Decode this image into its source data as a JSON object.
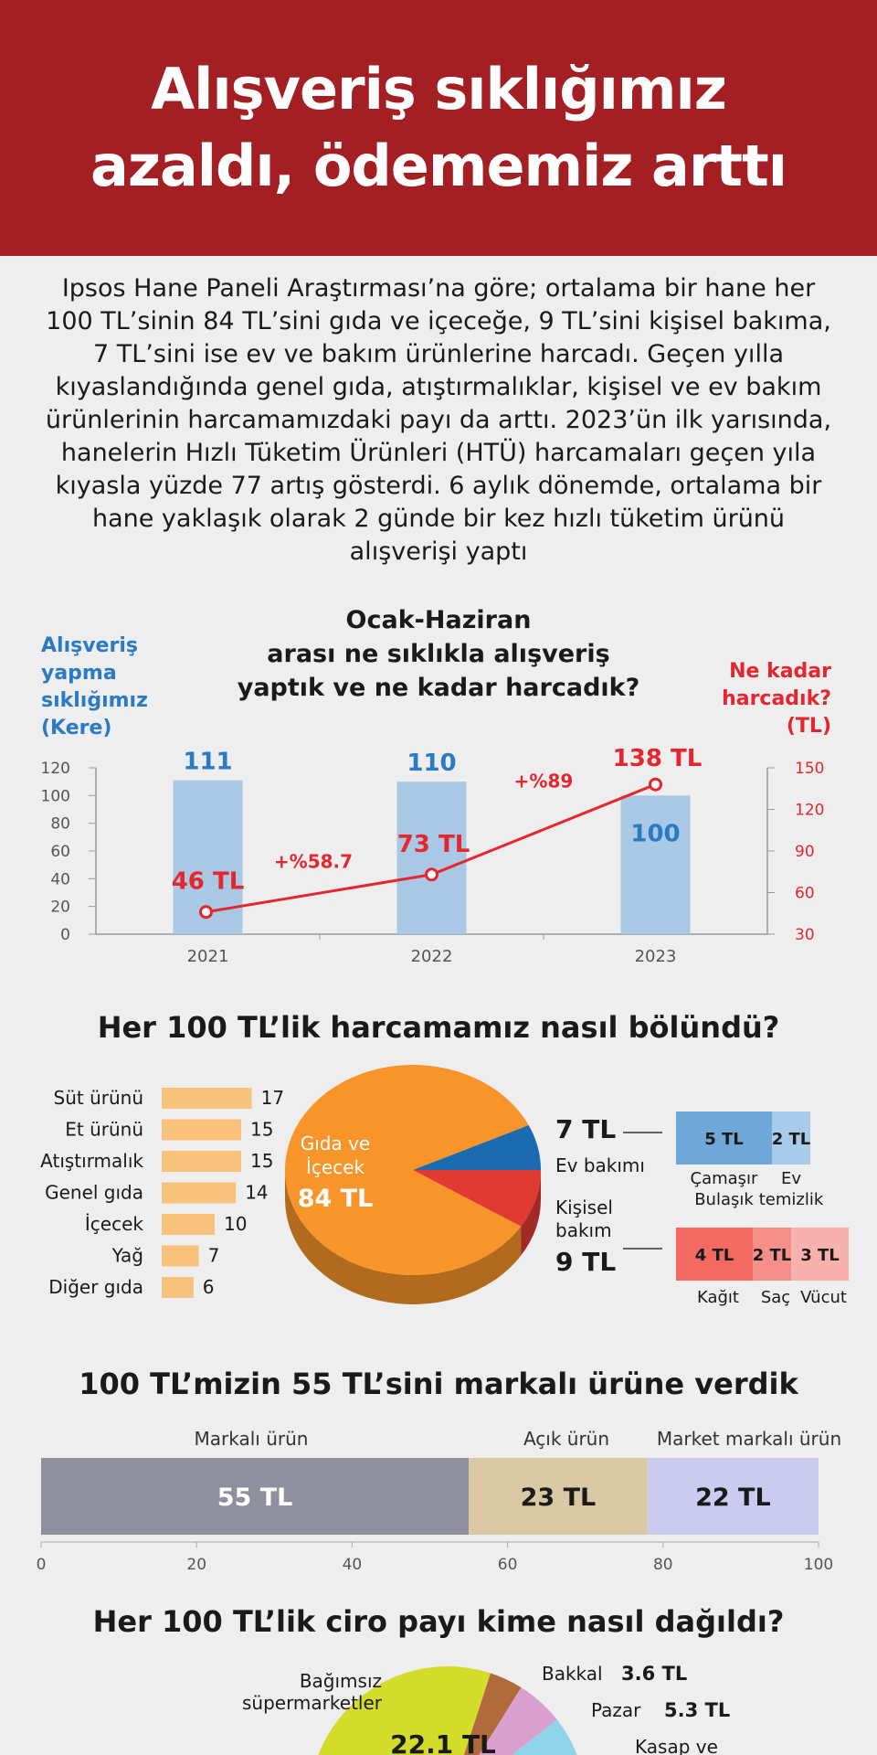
{
  "header": {
    "title_line1": "Alışveriş sıklığımız",
    "title_line2": "azaldı, ödememiz arttı"
  },
  "intro": {
    "text": "Ipsos Hane Paneli Araştırması’na göre; ortalama bir hane her 100 TL’sinin 84 TL’sini gıda ve içeceğe, 9 TL’sini kişisel bakıma, 7 TL’sini ise ev ve bakım ürünlerine harcadı. Geçen yılla kıyaslandığında genel gıda, atıştırmalıklar, kişisel ve ev bakım ürünlerinin harcamamızdaki payı da arttı. 2023’ün ilk yarısında, hanelerin Hızlı Tüketim Ürünleri (HTÜ) harcamaları geçen yıla kıyasla yüzde 77 artış gösterdi. 6 aylık dönemde, ortalama bir hane yaklaşık olarak 2 günde bir kez hızlı tüketim ürünü alışverişi yaptı"
  },
  "chart_data": [
    {
      "type": "bar+line",
      "title": "Ocak-Haziran arası ne sıklıkla alışveriş yaptık ve ne kadar harcadık?",
      "title_lines": [
        "Ocak-Haziran",
        "arası ne sıklıkla alışveriş",
        "yaptık ve ne kadar harcadık?"
      ],
      "left_axis_label_lines": [
        "Alışveriş",
        "yapma",
        "sıklığımız",
        "(Kere)"
      ],
      "right_axis_label_lines": [
        "Ne kadar",
        "harcadık?",
        "(TL)"
      ],
      "categories": [
        "2021",
        "2022",
        "2023"
      ],
      "bars": {
        "name": "Alışveriş yapma sıklığımız (Kere)",
        "values": [
          111,
          110,
          100
        ],
        "color": "#a8c8e6",
        "label_color": "#2a7bc4"
      },
      "line": {
        "name": "Ne kadar harcadık? (TL)",
        "values": [
          46,
          73,
          138
        ],
        "labels": [
          "46 TL",
          "73 TL",
          "138 TL"
        ],
        "color": "#e5262d"
      },
      "changes": [
        "+%58.7",
        "+%89"
      ],
      "ylim_left": [
        0,
        120
      ],
      "yticks_left": [
        "0",
        "20",
        "40",
        "60",
        "80",
        "100",
        "120"
      ],
      "ylim_right": [
        30,
        150
      ],
      "yticks_right": [
        "30",
        "60",
        "90",
        "120",
        "150"
      ]
    },
    {
      "type": "bar",
      "orientation": "horizontal",
      "title": "Her 100 TL’lik harcamamız nasıl bölündü?",
      "categories": [
        "Süt ürünü",
        "Et ürünü",
        "Atıştırmalık",
        "Genel gıda",
        "İçecek",
        "Yağ",
        "Diğer gıda"
      ],
      "values": [
        17,
        15,
        15,
        14,
        10,
        7,
        6
      ],
      "value_labels": [
        "17",
        "15",
        "15",
        "14",
        "10",
        "7",
        "6"
      ],
      "color": "#f9c27c"
    },
    {
      "type": "pie",
      "slices": [
        {
          "name": "Gıda ve İçecek",
          "label_lines": [
            "Gıda ve",
            "İçecek"
          ],
          "value": 84,
          "value_label": "84 TL",
          "color": "#f7952a"
        },
        {
          "name": "Ev bakımı",
          "value": 7,
          "value_label": "7 TL",
          "color": "#1c6bb0"
        },
        {
          "name": "Kişisel bakım",
          "label_lines": [
            "Kişisel",
            "bakım"
          ],
          "value": 9,
          "value_label": "9 TL",
          "color": "#e03a33"
        }
      ],
      "sub_breakdowns": [
        {
          "parent": "Ev bakımı",
          "items": [
            {
              "name_lines": [
                "Çamaşır",
                "Bulaşık"
              ],
              "value": 5,
              "value_label": "5 TL",
              "color": "#6fa7d8"
            },
            {
              "name_lines": [
                "Ev",
                "temizlik"
              ],
              "value": 2,
              "value_label": "2 TL",
              "color": "#a9cbea"
            }
          ]
        },
        {
          "parent": "Kişisel bakım",
          "items": [
            {
              "name_lines": [
                "Kağıt"
              ],
              "value": 4,
              "value_label": "4 TL",
              "color": "#f26a62"
            },
            {
              "name_lines": [
                "Saç"
              ],
              "value": 2,
              "value_label": "2 TL",
              "color": "#f58f89"
            },
            {
              "name_lines": [
                "Vücut"
              ],
              "value": 3,
              "value_label": "3 TL",
              "color": "#f8b2ad"
            }
          ]
        }
      ]
    },
    {
      "type": "bar",
      "orientation": "horizontal-stacked",
      "title": "100 TL’mizin 55 TL’sini markalı ürüne verdik",
      "series": [
        {
          "name": "Markalı ürün",
          "value": 55,
          "value_label": "55 TL",
          "color": "#8f8f9e",
          "text_color": "#ffffff"
        },
        {
          "name": "Açık ürün",
          "value": 23,
          "value_label": "23 TL",
          "color": "#d9c8a3",
          "text_color": "#1a1a1a"
        },
        {
          "name": "Market markalı ürün",
          "value": 22,
          "value_label": "22 TL",
          "color": "#cbcbf0",
          "text_color": "#1a1a1a"
        }
      ],
      "xlim": [
        0,
        100
      ],
      "xticks": [
        "0",
        "20",
        "40",
        "60",
        "80",
        "100"
      ]
    },
    {
      "type": "pie",
      "title": "Her 100 TL’lik ciro payı kime nasıl dağıldı?",
      "slices": [
        {
          "name": "Bağımsız süpermarketler",
          "label_lines": [
            "Bağımsız",
            "süpermarketler"
          ],
          "value": 22.1,
          "value_label": "22.1 TL",
          "color": "#d4dc2b"
        },
        {
          "name": "Bakkal",
          "value": 3.6,
          "value_label": "3.6 TL",
          "color": "#b06a3c"
        },
        {
          "name": "Pazar",
          "value": 5.3,
          "value_label": "5.3 TL",
          "color": "#d9a0cf"
        },
        {
          "name": "Kasap ve",
          "value_label": "",
          "color": "#8fd3e8"
        }
      ]
    }
  ]
}
